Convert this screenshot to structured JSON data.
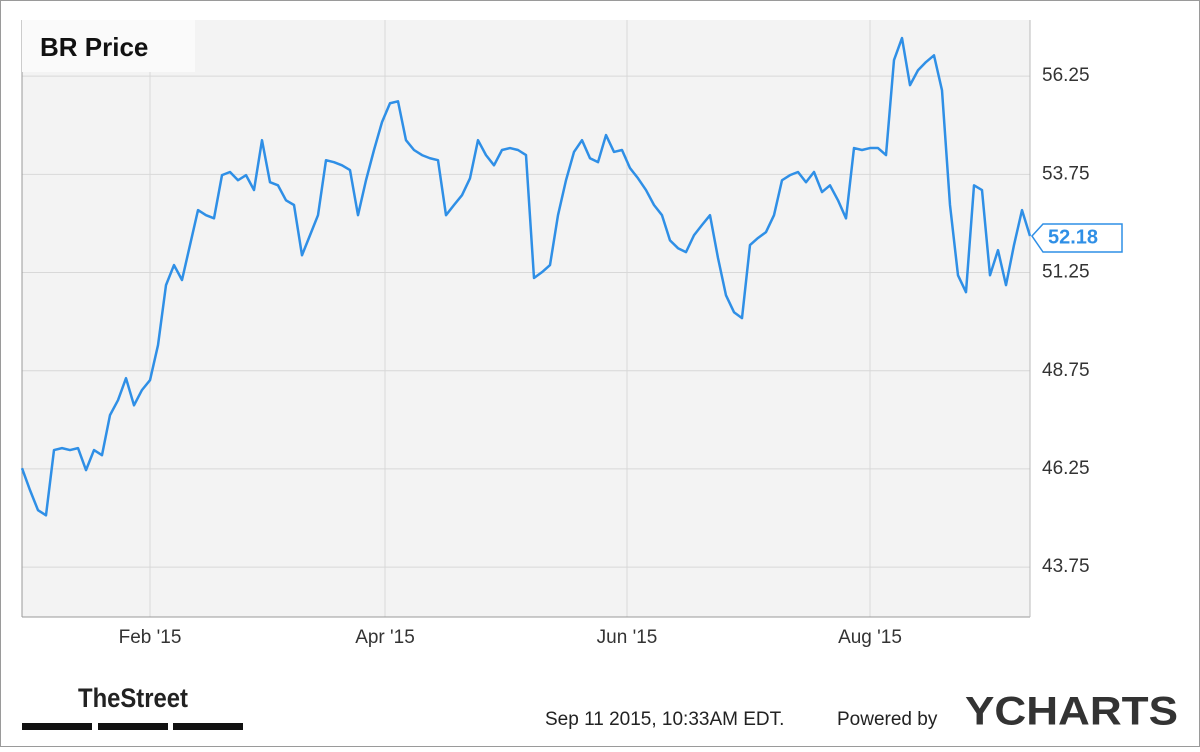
{
  "chart_data": {
    "type": "line",
    "series": [
      {
        "name": "BR Price",
        "color": "#2f8fe6",
        "values": [
          46.27,
          45.71,
          45.2,
          45.07,
          46.73,
          46.78,
          46.73,
          46.78,
          46.22,
          46.73,
          46.6,
          47.62,
          48.0,
          48.56,
          47.87,
          48.26,
          48.51,
          49.4,
          50.93,
          51.44,
          51.06,
          51.95,
          52.84,
          52.71,
          52.63,
          53.73,
          53.81,
          53.6,
          53.73,
          53.35,
          54.62,
          53.55,
          53.47,
          53.09,
          52.97,
          51.69,
          52.2,
          52.71,
          54.11,
          54.06,
          53.98,
          53.86,
          52.71,
          53.6,
          54.37,
          55.08,
          55.56,
          55.61,
          54.62,
          54.37,
          54.24,
          54.16,
          54.11,
          52.71,
          52.97,
          53.22,
          53.65,
          54.62,
          54.24,
          53.98,
          54.37,
          54.42,
          54.37,
          54.24,
          51.11,
          51.26,
          51.44,
          52.71,
          53.6,
          54.32,
          54.62,
          54.16,
          54.06,
          54.75,
          54.32,
          54.37,
          53.91,
          53.65,
          53.35,
          52.97,
          52.71,
          52.07,
          51.87,
          51.77,
          52.2,
          52.46,
          52.71,
          51.62,
          50.67,
          50.24,
          50.09,
          51.95,
          52.13,
          52.28,
          52.71,
          53.6,
          53.73,
          53.81,
          53.55,
          53.81,
          53.3,
          53.47,
          53.09,
          52.63,
          54.42,
          54.37,
          54.42,
          54.42,
          54.24,
          56.66,
          57.22,
          56.02,
          56.4,
          56.61,
          56.78,
          55.89,
          52.97,
          51.18,
          50.75,
          53.47,
          53.35,
          51.18,
          51.82,
          50.93,
          51.95,
          52.84,
          52.18
        ]
      }
    ],
    "xlim": [
      0,
      126
    ],
    "xticks": [
      {
        "value": 16,
        "label": "Feb '15"
      },
      {
        "value": 45.375,
        "label": "Apr '15"
      },
      {
        "value": 75.625,
        "label": "Jun '15"
      },
      {
        "value": 106,
        "label": "Aug '15"
      }
    ],
    "ylim": [
      42.48,
      57.68
    ],
    "yticks": [
      43.75,
      46.25,
      48.75,
      51.25,
      53.75,
      56.25
    ],
    "grid": true,
    "source": "TheStreet",
    "timestamp": "Sep 11 2015, 10:33AM EDT.",
    "credit": "Powered by",
    "brand": "YCHARTS"
  }
}
